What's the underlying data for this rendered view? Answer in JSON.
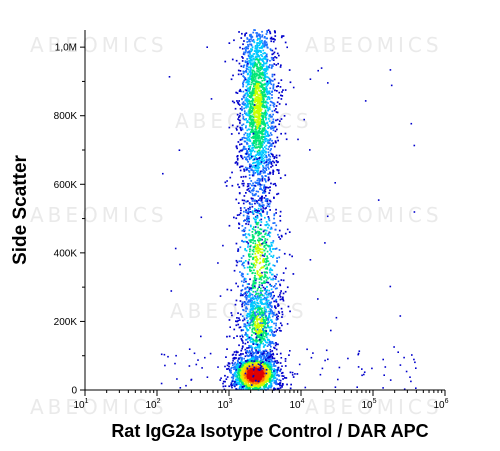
{
  "chart_data": {
    "type": "scatter",
    "title": "",
    "xlabel": "Rat IgG2a Isotype Control / DAR APC",
    "ylabel": "Side Scatter",
    "x_scale": "log",
    "xlim": [
      10,
      1000000
    ],
    "ylim": [
      0,
      1050000
    ],
    "x_ticks": [
      {
        "value": 10,
        "base": "10",
        "exp": "1"
      },
      {
        "value": 100,
        "base": "10",
        "exp": "2"
      },
      {
        "value": 1000,
        "base": "10",
        "exp": "3"
      },
      {
        "value": 10000,
        "base": "10",
        "exp": "4"
      },
      {
        "value": 100000,
        "base": "10",
        "exp": "5"
      },
      {
        "value": 1000000,
        "base": "10",
        "exp": "6"
      }
    ],
    "y_ticks": [
      {
        "value": 0,
        "label": "0"
      },
      {
        "value": 200000,
        "label": "200K"
      },
      {
        "value": 400000,
        "label": "400K"
      },
      {
        "value": 600000,
        "label": "600K"
      },
      {
        "value": 800000,
        "label": "800K"
      },
      {
        "value": 1000000,
        "label": "1,0M"
      }
    ],
    "populations": [
      {
        "center_x": 2500,
        "center_y": 830000,
        "spread_log_x": 0.13,
        "spread_y": 150000,
        "relative_count": 0.4
      },
      {
        "center_x": 2300,
        "center_y": 45000,
        "spread_log_x": 0.16,
        "spread_y": 28000,
        "relative_count": 0.33
      },
      {
        "center_x": 2600,
        "center_y": 190000,
        "spread_log_x": 0.14,
        "spread_y": 60000,
        "relative_count": 0.14
      },
      {
        "center_x": 2600,
        "center_y": 380000,
        "spread_log_x": 0.16,
        "spread_y": 120000,
        "relative_count": 0.13
      }
    ],
    "grid": false,
    "legend": "none",
    "colormap": [
      "#0000cc",
      "#1a6fff",
      "#00c8ff",
      "#00e676",
      "#c8ff00",
      "#ffd400",
      "#ff7a00",
      "#e00000"
    ]
  },
  "watermark": "ABEOMICS"
}
